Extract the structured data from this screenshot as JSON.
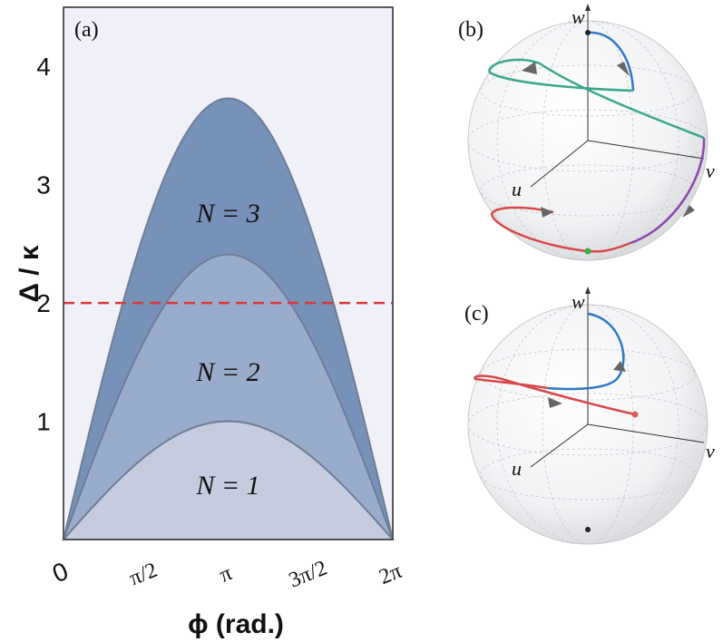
{
  "chart_data": [
    {
      "type": "area",
      "panel_label": "(a)",
      "xlabel": "ϕ (rad.)",
      "ylabel": "Δ / κ",
      "x_ticks": [
        {
          "value": 0,
          "label": "0"
        },
        {
          "value": 1.5708,
          "label": "π/2"
        },
        {
          "value": 3.1416,
          "label": "π"
        },
        {
          "value": 4.7124,
          "label": "3π/2"
        },
        {
          "value": 6.2832,
          "label": "2π"
        }
      ],
      "y_ticks": [
        1,
        2,
        3,
        4
      ],
      "xlim": [
        0,
        6.2832
      ],
      "ylim": [
        0,
        4.5
      ],
      "series": [
        {
          "label": "N = 1",
          "peak": 1.0,
          "color": "#c5ccdf"
        },
        {
          "label": "N = 2",
          "peak": 2.41,
          "color": "#9aaccb"
        },
        {
          "label": "N = 3",
          "peak": 3.73,
          "color": "#7792b9"
        }
      ],
      "reference_line": {
        "y": 2,
        "color": "#d9383a",
        "style": "dashed"
      }
    },
    {
      "type": "diagram",
      "panel_label": "(b)",
      "axes": [
        "u",
        "v",
        "w"
      ],
      "trajectory_colors": [
        "#2e78c8",
        "#3aa88c",
        "#8a46b0",
        "#d9484a"
      ],
      "point_colors": [
        "#3cb043",
        "#222222"
      ]
    },
    {
      "type": "diagram",
      "panel_label": "(c)",
      "axes": [
        "u",
        "v",
        "w"
      ],
      "trajectory_colors": [
        "#2e78c8",
        "#d9484a"
      ],
      "point_colors": [
        "#e05a5a",
        "#222222"
      ]
    }
  ]
}
